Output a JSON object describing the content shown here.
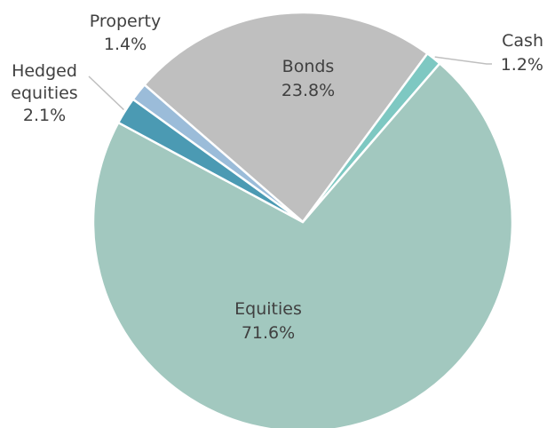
{
  "chart_data": {
    "type": "pie",
    "title": "",
    "slices": [
      {
        "name": "Bonds",
        "value": 23.8,
        "value_label": "23.8%",
        "color": "#bfbfbf",
        "label_placement": "inside"
      },
      {
        "name": "Cash",
        "value": 1.2,
        "value_label": "1.2%",
        "color": "#7ec8c2",
        "label_placement": "outside"
      },
      {
        "name": "Equities",
        "value": 71.6,
        "value_label": "71.6%",
        "color": "#a2c8bf",
        "label_placement": "inside"
      },
      {
        "name": "Hedged equities",
        "value": 2.1,
        "value_label": "2.1%",
        "color": "#4b9ab3",
        "label_placement": "outside"
      },
      {
        "name": "Property",
        "value": 1.4,
        "value_label": "1.4%",
        "color": "#9bbcd9",
        "label_placement": "outside"
      }
    ],
    "legend": "none",
    "leader_line_color": "#bfbfbf"
  }
}
